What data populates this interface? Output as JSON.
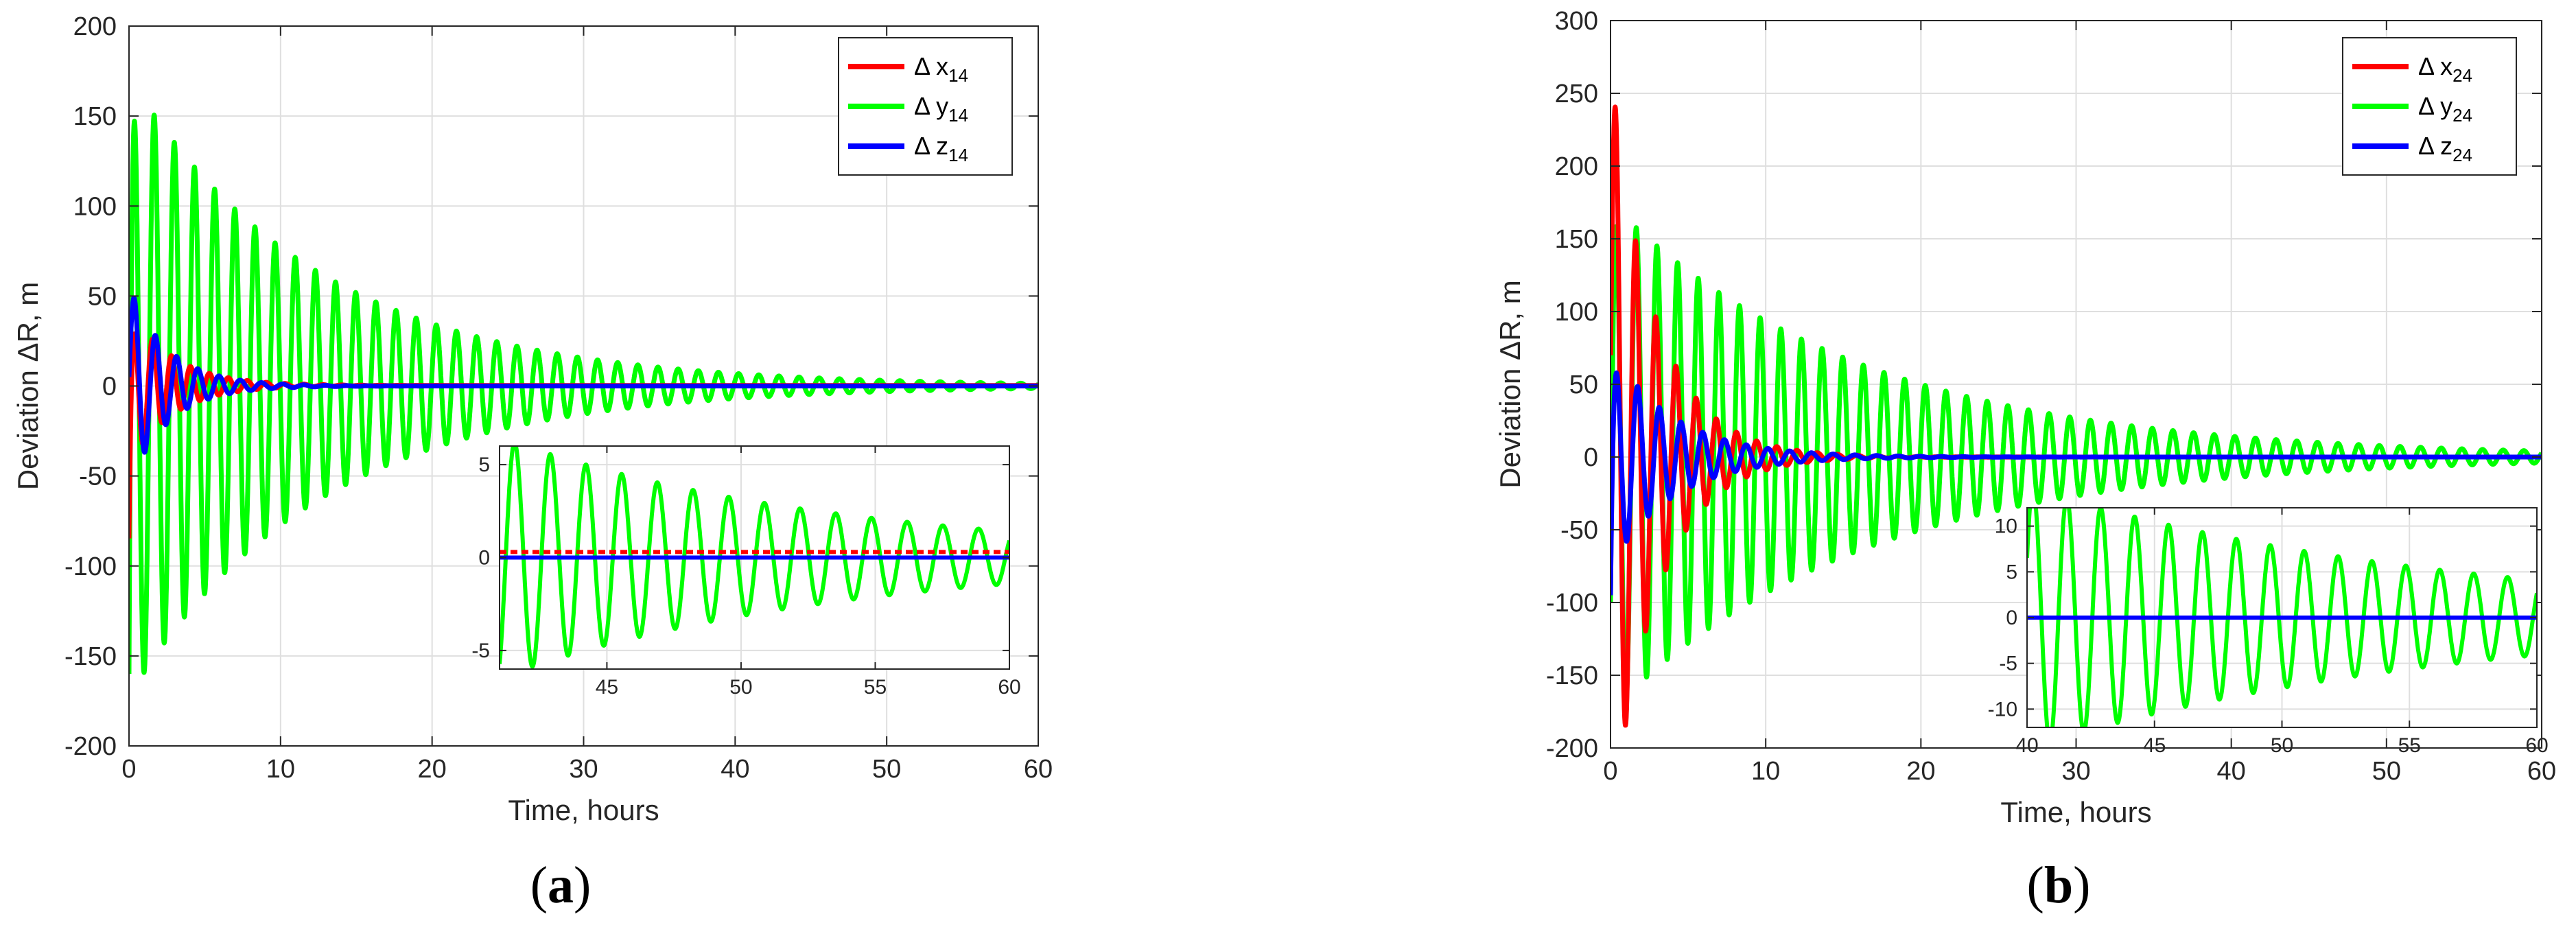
{
  "chart_data": [
    {
      "panel_label": "a",
      "type": "line",
      "xlabel": "Time, hours",
      "ylabel": "Deviation ΔR, m",
      "xlim": [
        0,
        60
      ],
      "ylim": [
        -200,
        200
      ],
      "xticks": [
        0,
        10,
        20,
        30,
        40,
        50,
        60
      ],
      "yticks": [
        -200,
        -150,
        -100,
        -50,
        0,
        50,
        100,
        150,
        200
      ],
      "grid": true,
      "legend_position": "top-right",
      "series": [
        {
          "name": "Δ x",
          "subscript": "14",
          "color": "#ff0000",
          "initial": -85,
          "amplitude": 45,
          "decay_hours": 2.8,
          "period_hours": 1.25,
          "offset": 0.3
        },
        {
          "name": "Δ y",
          "subscript": "14",
          "color": "#00ff00",
          "initial": -160,
          "amplitude": 172,
          "decay_hours": 12.5,
          "period_hours": 1.33,
          "offset": 0
        },
        {
          "name": "Δ z",
          "subscript": "14",
          "color": "#0000ff",
          "initial": 5,
          "amplitude": 55,
          "decay_hours": 2.6,
          "period_hours": 1.4,
          "offset": 0
        }
      ],
      "inset": {
        "xlim": [
          41,
          60
        ],
        "ylim": [
          -6,
          6
        ],
        "xticks": [
          45,
          50,
          55,
          60
        ],
        "yticks": [
          -5,
          0,
          5
        ],
        "grid": true
      }
    },
    {
      "panel_label": "b",
      "type": "line",
      "xlabel": "Time, hours",
      "ylabel": "Deviation ΔR, m",
      "xlim": [
        0,
        60
      ],
      "ylim": [
        -200,
        300
      ],
      "xticks": [
        0,
        10,
        20,
        30,
        40,
        50,
        60
      ],
      "yticks": [
        -200,
        -150,
        -100,
        -50,
        0,
        50,
        100,
        150,
        200,
        250,
        300
      ],
      "grid": true,
      "legend_position": "top-right",
      "series": [
        {
          "name": "Δ x",
          "subscript": "24",
          "color": "#ff0000",
          "initial": 70,
          "amplitude": 255,
          "decay_hours": 3.0,
          "period_hours": 1.3,
          "offset": 0
        },
        {
          "name": "Δ y",
          "subscript": "24",
          "color": "#00ff00",
          "initial": -100,
          "amplitude": 175,
          "decay_hours": 16,
          "period_hours": 1.33,
          "offset": 0
        },
        {
          "name": "Δ z",
          "subscript": "24",
          "color": "#0000ff",
          "initial": -95,
          "amplitude": 75,
          "decay_hours": 4.0,
          "period_hours": 1.4,
          "offset": 0
        }
      ],
      "inset": {
        "xlim": [
          40,
          60
        ],
        "ylim": [
          -12,
          12
        ],
        "xticks": [
          40,
          45,
          50,
          55,
          60
        ],
        "yticks": [
          -10,
          -5,
          0,
          5,
          10
        ],
        "grid": true
      }
    }
  ]
}
